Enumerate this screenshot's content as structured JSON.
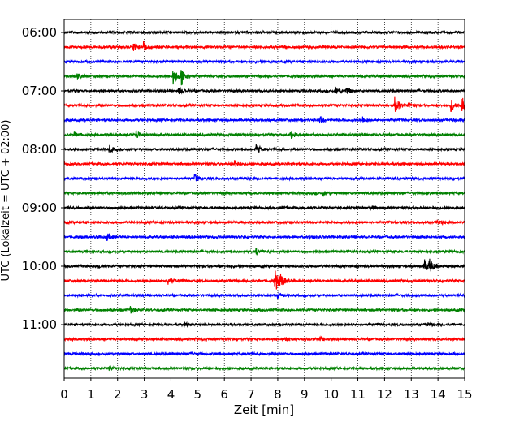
{
  "chart_data": {
    "type": "line",
    "title": "",
    "xlabel": "Zeit  [min]",
    "ylabel": "UTC (Lokalzeit = UTC + 02:00)",
    "xlim": [
      0,
      15
    ],
    "x_ticks": [
      "0",
      "1",
      "2",
      "3",
      "4",
      "5",
      "6",
      "7",
      "8",
      "9",
      "10",
      "11",
      "12",
      "13",
      "14",
      "15"
    ],
    "y_tick_labels": [
      "06:00",
      "07:00",
      "08:00",
      "09:00",
      "10:00",
      "11:00"
    ],
    "grid": "vertical dotted",
    "trace_interval_minutes": 15,
    "colors": [
      "#000000",
      "#ff0000",
      "#0000ff",
      "#008000"
    ],
    "series": [
      {
        "start": "06:00",
        "color": "#000000",
        "events": []
      },
      {
        "start": "06:15",
        "color": "#ff0000",
        "events": [
          {
            "t": 2.6,
            "amp": 0.25
          },
          {
            "t": 3.0,
            "amp": 0.35
          }
        ]
      },
      {
        "start": "06:30",
        "color": "#0000ff",
        "events": []
      },
      {
        "start": "06:45",
        "color": "#008000",
        "events": [
          {
            "t": 0.5,
            "amp": 0.2
          },
          {
            "t": 4.1,
            "amp": 0.6
          },
          {
            "t": 4.4,
            "amp": 0.6
          }
        ]
      },
      {
        "start": "07:00",
        "color": "#000000",
        "events": [
          {
            "t": 4.3,
            "amp": 0.2
          },
          {
            "t": 10.2,
            "amp": 0.2
          },
          {
            "t": 10.6,
            "amp": 0.2
          }
        ]
      },
      {
        "start": "07:15",
        "color": "#ff0000",
        "events": [
          {
            "t": 12.4,
            "amp": 0.6
          },
          {
            "t": 12.9,
            "amp": 0.2
          },
          {
            "t": 14.5,
            "amp": 0.4
          },
          {
            "t": 14.9,
            "amp": 0.7
          }
        ]
      },
      {
        "start": "07:30",
        "color": "#0000ff",
        "events": [
          {
            "t": 9.6,
            "amp": 0.2
          },
          {
            "t": 11.2,
            "amp": 0.2
          }
        ]
      },
      {
        "start": "07:45",
        "color": "#008000",
        "events": [
          {
            "t": 0.4,
            "amp": 0.15
          },
          {
            "t": 2.7,
            "amp": 0.3
          },
          {
            "t": 8.5,
            "amp": 0.25
          }
        ]
      },
      {
        "start": "08:00",
        "color": "#000000",
        "events": [
          {
            "t": 1.7,
            "amp": 0.2
          },
          {
            "t": 7.2,
            "amp": 0.35
          }
        ]
      },
      {
        "start": "08:15",
        "color": "#ff0000",
        "events": [
          {
            "t": 6.4,
            "amp": 0.25
          }
        ]
      },
      {
        "start": "08:30",
        "color": "#0000ff",
        "events": [
          {
            "t": 4.9,
            "amp": 0.25
          }
        ]
      },
      {
        "start": "08:45",
        "color": "#008000",
        "events": [
          {
            "t": 9.7,
            "amp": 0.12
          }
        ]
      },
      {
        "start": "09:00",
        "color": "#000000",
        "events": [
          {
            "t": 11.5,
            "amp": 0.12
          }
        ]
      },
      {
        "start": "09:15",
        "color": "#ff0000",
        "events": [
          {
            "t": 14.0,
            "amp": 0.2
          }
        ]
      },
      {
        "start": "09:30",
        "color": "#0000ff",
        "events": [
          {
            "t": 1.6,
            "amp": 0.25
          },
          {
            "t": 9.2,
            "amp": 0.12
          }
        ]
      },
      {
        "start": "09:45",
        "color": "#008000",
        "events": [
          {
            "t": 7.2,
            "amp": 0.2
          }
        ]
      },
      {
        "start": "10:00",
        "color": "#000000",
        "events": [
          {
            "t": 1.3,
            "amp": 0.12
          },
          {
            "t": 13.5,
            "amp": 0.45
          },
          {
            "t": 13.7,
            "amp": 0.4
          }
        ]
      },
      {
        "start": "10:15",
        "color": "#ff0000",
        "events": [
          {
            "t": 3.9,
            "amp": 0.3
          },
          {
            "t": 7.9,
            "amp": 0.8
          },
          {
            "t": 8.1,
            "amp": 0.4
          }
        ]
      },
      {
        "start": "10:30",
        "color": "#0000ff",
        "events": [
          {
            "t": 8.0,
            "amp": 0.15
          }
        ]
      },
      {
        "start": "10:45",
        "color": "#008000",
        "events": [
          {
            "t": 2.5,
            "amp": 0.2
          }
        ]
      },
      {
        "start": "11:00",
        "color": "#000000",
        "events": [
          {
            "t": 4.5,
            "amp": 0.15
          },
          {
            "t": 13.6,
            "amp": 0.15
          }
        ]
      },
      {
        "start": "11:15",
        "color": "#ff0000",
        "events": [
          {
            "t": 8.3,
            "amp": 0.15
          },
          {
            "t": 9.6,
            "amp": 0.12
          }
        ]
      },
      {
        "start": "11:30",
        "color": "#0000ff",
        "events": []
      },
      {
        "start": "11:45",
        "color": "#008000",
        "events": [
          {
            "t": 1.7,
            "amp": 0.12
          }
        ]
      }
    ]
  }
}
